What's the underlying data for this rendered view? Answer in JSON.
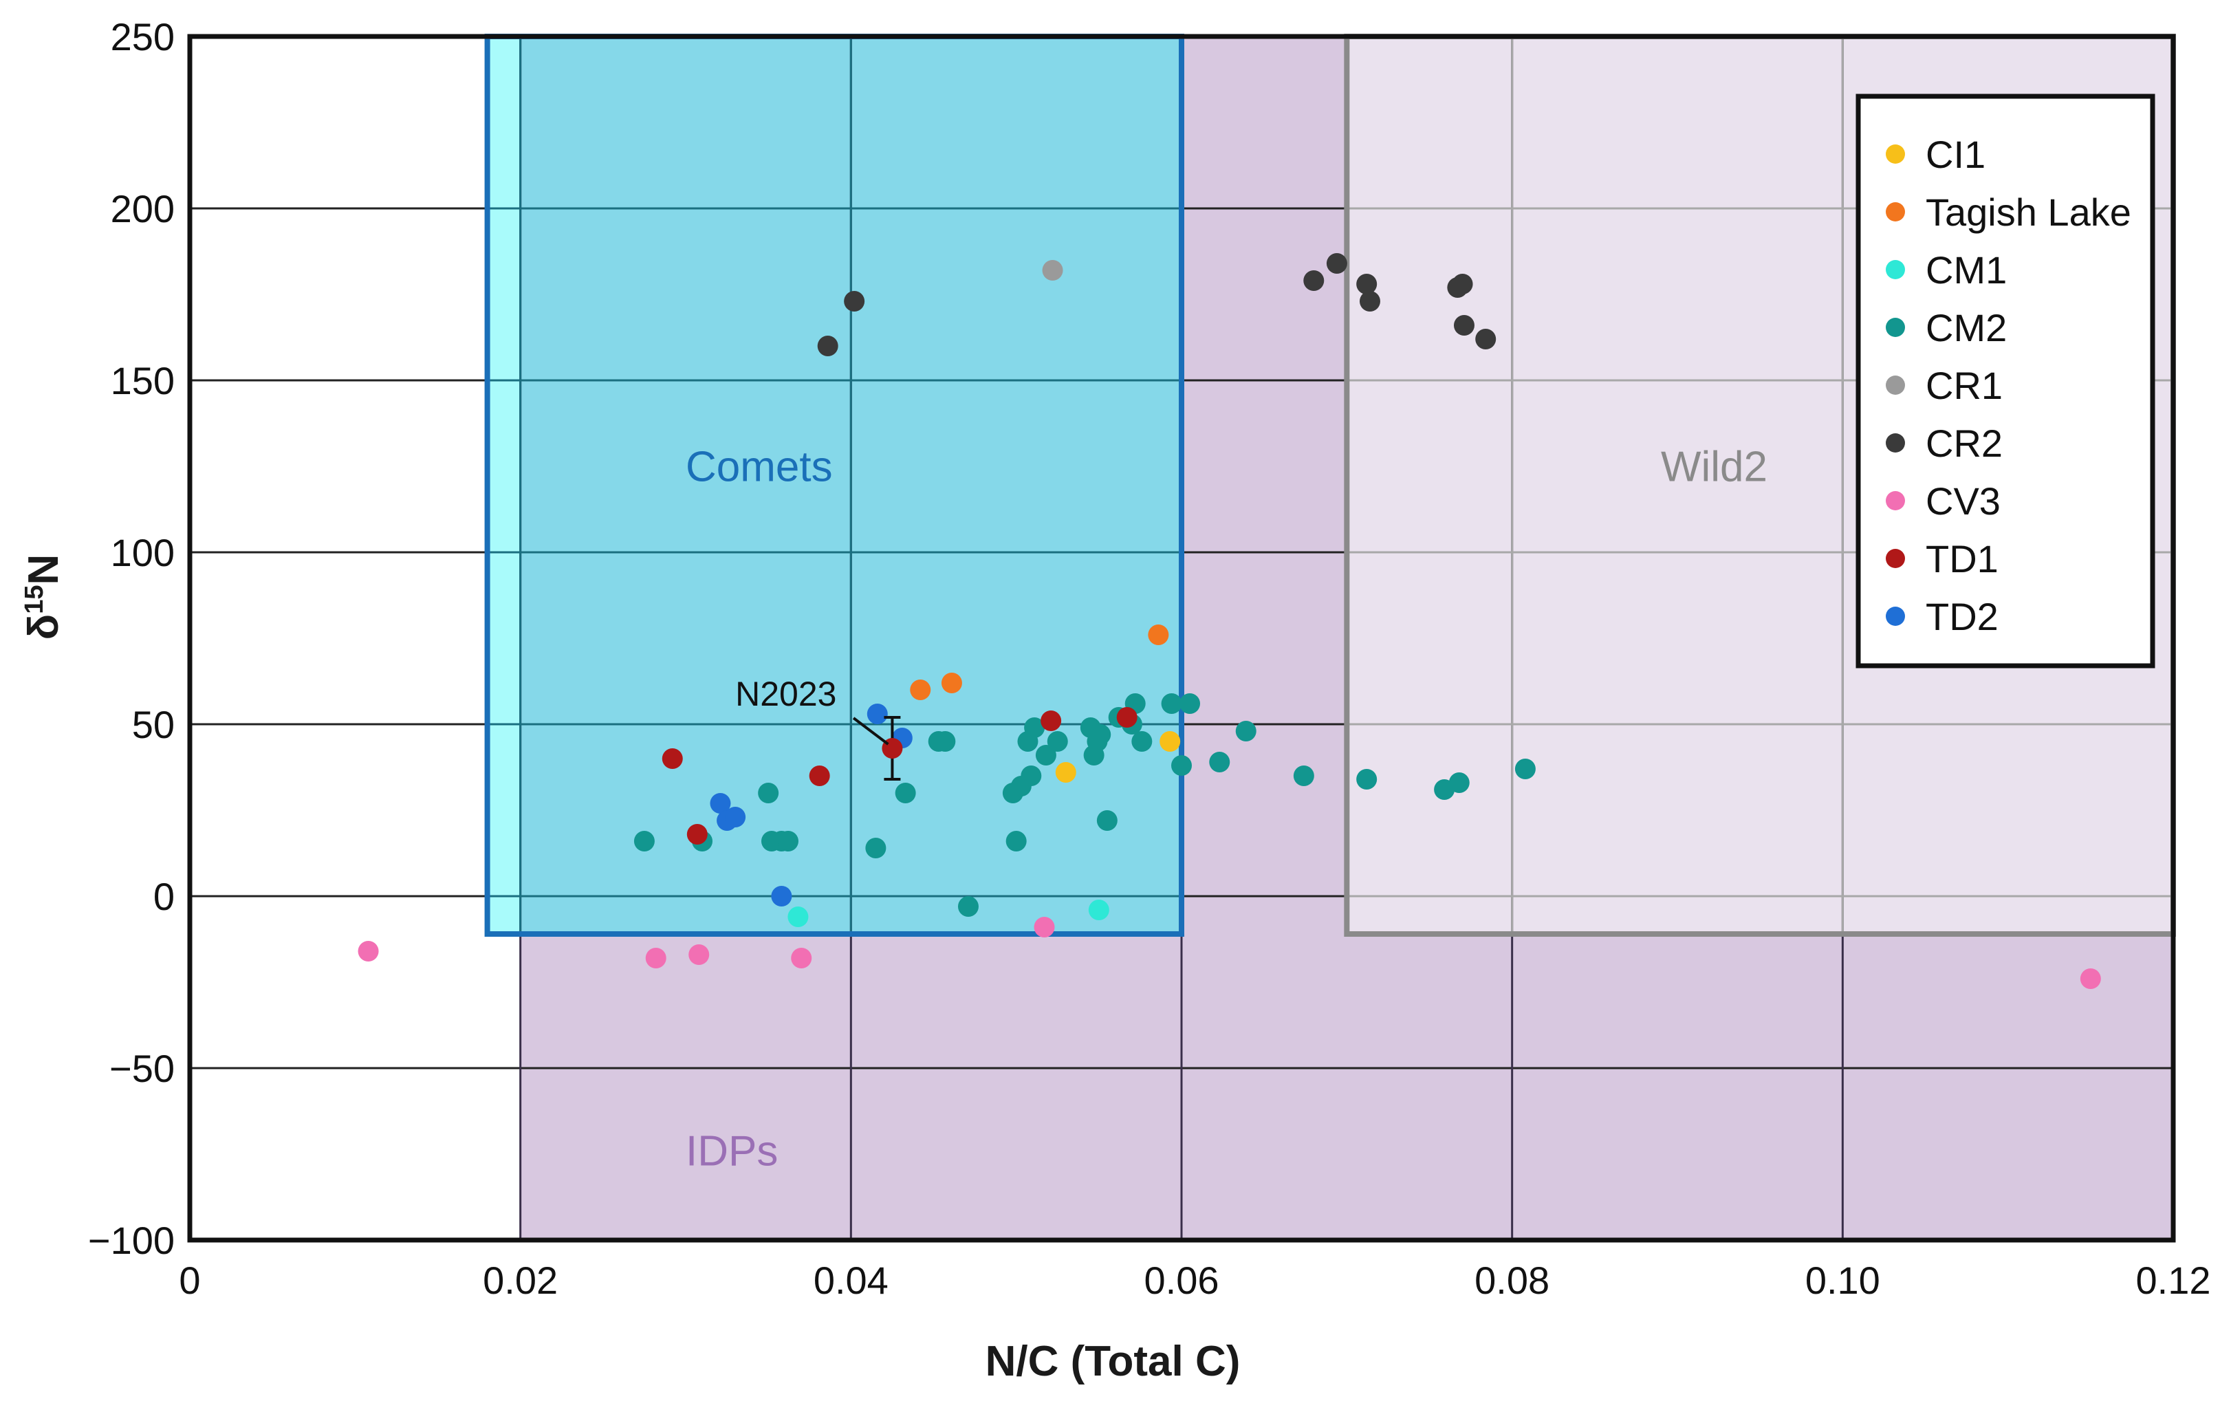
{
  "chart_data": {
    "type": "scatter",
    "title": "",
    "xlabel": "N/C (Total C)",
    "ylabel": "δ15N",
    "xlim": [
      0,
      0.12
    ],
    "ylim": [
      -100,
      250
    ],
    "xticks": [
      {
        "value": 0,
        "label": "0"
      },
      {
        "value": 0.02,
        "label": "0.02"
      },
      {
        "value": 0.04,
        "label": "0.04"
      },
      {
        "value": 0.06,
        "label": "0.06"
      },
      {
        "value": 0.08,
        "label": "0.08"
      },
      {
        "value": 0.1,
        "label": "0.10"
      },
      {
        "value": 0.12,
        "label": "0.12"
      }
    ],
    "yticks": [
      {
        "value": -100,
        "label": "−100"
      },
      {
        "value": -50,
        "label": "−50"
      },
      {
        "value": 0,
        "label": "0"
      },
      {
        "value": 50,
        "label": "50"
      },
      {
        "value": 100,
        "label": "100"
      },
      {
        "value": 150,
        "label": "150"
      },
      {
        "value": 200,
        "label": "200"
      },
      {
        "value": 250,
        "label": "250"
      }
    ],
    "regions": [
      {
        "name": "IDPs",
        "x_range": [
          0.02,
          0.12
        ],
        "y_range": [
          -100,
          250
        ],
        "fill": "#d8c8e0",
        "label_at": [
          0.03,
          -75
        ],
        "label_color": "#9a6fb5"
      },
      {
        "name": "Wild2",
        "x_range": [
          0.07,
          0.12
        ],
        "y_range": [
          -11,
          250
        ],
        "fill": "#eae2ee",
        "edge": "#8a8a8a",
        "label_at": [
          0.089,
          124
        ],
        "label_color": "#8a8a8a"
      },
      {
        "name": "Comets",
        "x_range": [
          0.018,
          0.06
        ],
        "y_range": [
          -11,
          250
        ],
        "fill": "#85d8e9",
        "edge": "#1a6fb8",
        "label_at": [
          0.03,
          124
        ],
        "label_color": "#1a6fb8"
      }
    ],
    "series": [
      {
        "name": "CI1",
        "color": "#f7bf19",
        "points": [
          [
            0.0593,
            45
          ],
          [
            0.053,
            36
          ]
        ]
      },
      {
        "name": "Tagish Lake",
        "color": "#f2761e",
        "points": [
          [
            0.0442,
            60
          ],
          [
            0.0461,
            62
          ],
          [
            0.0586,
            76
          ]
        ]
      },
      {
        "name": "CM1",
        "color": "#2ee8d6",
        "points": [
          [
            0.0368,
            -6
          ],
          [
            0.055,
            -4
          ]
        ]
      },
      {
        "name": "CM2",
        "color": "#12968f",
        "points": [
          [
            0.0275,
            16
          ],
          [
            0.031,
            16
          ],
          [
            0.035,
            30
          ],
          [
            0.0352,
            16
          ],
          [
            0.0358,
            16
          ],
          [
            0.0362,
            16
          ],
          [
            0.0415,
            14
          ],
          [
            0.0433,
            30
          ],
          [
            0.0453,
            45
          ],
          [
            0.0457,
            45
          ],
          [
            0.0471,
            -3
          ],
          [
            0.0498,
            30
          ],
          [
            0.05,
            16
          ],
          [
            0.0503,
            32
          ],
          [
            0.0507,
            45
          ],
          [
            0.0509,
            35
          ],
          [
            0.0511,
            49
          ],
          [
            0.0518,
            41
          ],
          [
            0.0525,
            45
          ],
          [
            0.0545,
            49
          ],
          [
            0.0547,
            41
          ],
          [
            0.0549,
            45
          ],
          [
            0.0551,
            47
          ],
          [
            0.0555,
            22
          ],
          [
            0.0562,
            52
          ],
          [
            0.057,
            50
          ],
          [
            0.0572,
            56
          ],
          [
            0.0576,
            45
          ],
          [
            0.0594,
            56
          ],
          [
            0.06,
            38
          ],
          [
            0.0605,
            56
          ],
          [
            0.0623,
            39
          ],
          [
            0.0639,
            48
          ],
          [
            0.0674,
            35
          ],
          [
            0.0712,
            34
          ],
          [
            0.0759,
            31
          ],
          [
            0.0768,
            33
          ],
          [
            0.0808,
            37
          ]
        ]
      },
      {
        "name": "CR1",
        "color": "#9a9a9a",
        "points": [
          [
            0.0522,
            182
          ]
        ]
      },
      {
        "name": "CR2",
        "color": "#3a3a3a",
        "points": [
          [
            0.0386,
            160
          ],
          [
            0.0402,
            173
          ],
          [
            0.068,
            179
          ],
          [
            0.0694,
            184
          ],
          [
            0.0712,
            178
          ],
          [
            0.0714,
            173
          ],
          [
            0.0767,
            177
          ],
          [
            0.077,
            178
          ],
          [
            0.0771,
            166
          ],
          [
            0.0784,
            162
          ]
        ]
      },
      {
        "name": "CV3",
        "color": "#f26fb3",
        "points": [
          [
            0.0108,
            -16
          ],
          [
            0.0282,
            -18
          ],
          [
            0.0308,
            -17
          ],
          [
            0.037,
            -18
          ],
          [
            0.0517,
            -9
          ],
          [
            0.115,
            -24
          ]
        ]
      },
      {
        "name": "TD1",
        "color": "#b01818",
        "points": [
          [
            0.0292,
            40
          ],
          [
            0.0307,
            18
          ],
          [
            0.0381,
            35
          ],
          [
            0.0521,
            51
          ],
          [
            0.0567,
            52
          ]
        ]
      },
      {
        "name": "TD2",
        "color": "#1f6fd6",
        "points": [
          [
            0.0321,
            27
          ],
          [
            0.0325,
            22
          ],
          [
            0.033,
            23
          ],
          [
            0.0358,
            0
          ],
          [
            0.0416,
            53
          ],
          [
            0.0431,
            46
          ]
        ]
      }
    ],
    "annotations": [
      {
        "text": "N2023",
        "point": [
          0.0425,
          43
        ],
        "error_y": [
          34,
          52
        ],
        "color": "#b01818",
        "label_at": [
          0.033,
          57
        ]
      }
    ],
    "legend": {
      "position": "top-right",
      "entries": [
        "CI1",
        "Tagish Lake",
        "CM1",
        "CM2",
        "CR1",
        "CR2",
        "CV3",
        "TD1",
        "TD2"
      ]
    },
    "grid": true
  }
}
